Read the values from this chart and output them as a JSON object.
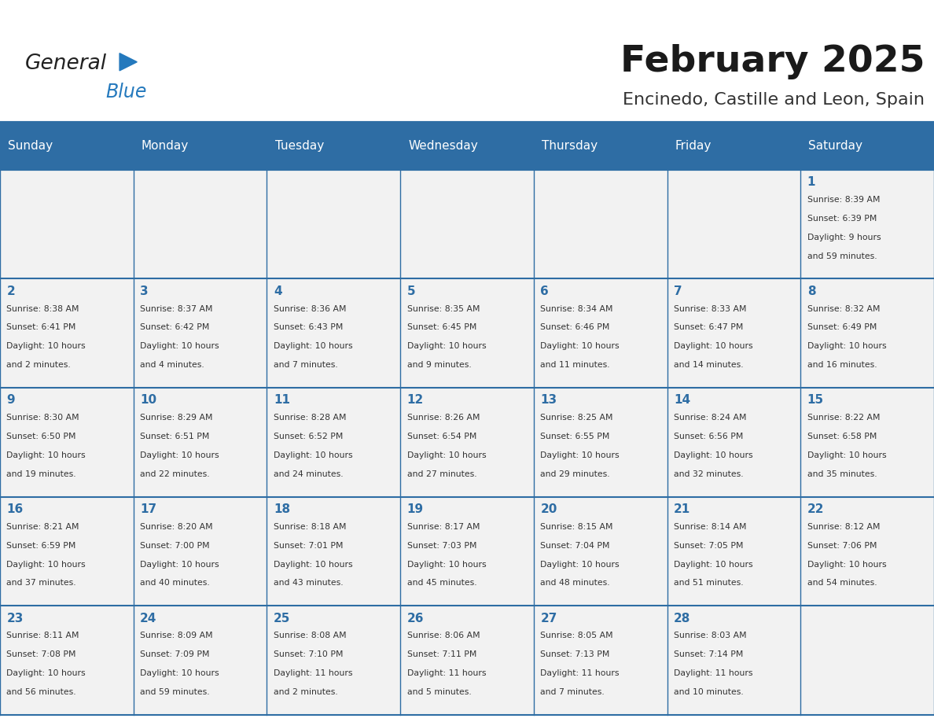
{
  "title": "February 2025",
  "subtitle": "Encinedo, Castille and Leon, Spain",
  "days_of_week": [
    "Sunday",
    "Monday",
    "Tuesday",
    "Wednesday",
    "Thursday",
    "Friday",
    "Saturday"
  ],
  "header_bg": "#2E6DA4",
  "header_text": "#FFFFFF",
  "cell_bg_light": "#F2F2F2",
  "border_color": "#2E6DA4",
  "text_color": "#333333",
  "day_num_color": "#2E6DA4",
  "logo_general_color": "#222222",
  "logo_blue_color": "#2479BD",
  "calendar_data": [
    [
      null,
      null,
      null,
      null,
      null,
      null,
      {
        "day": 1,
        "sunrise": "8:39 AM",
        "sunset": "6:39 PM",
        "daylight": "9 hours and 59 minutes."
      }
    ],
    [
      {
        "day": 2,
        "sunrise": "8:38 AM",
        "sunset": "6:41 PM",
        "daylight": "10 hours and 2 minutes."
      },
      {
        "day": 3,
        "sunrise": "8:37 AM",
        "sunset": "6:42 PM",
        "daylight": "10 hours and 4 minutes."
      },
      {
        "day": 4,
        "sunrise": "8:36 AM",
        "sunset": "6:43 PM",
        "daylight": "10 hours and 7 minutes."
      },
      {
        "day": 5,
        "sunrise": "8:35 AM",
        "sunset": "6:45 PM",
        "daylight": "10 hours and 9 minutes."
      },
      {
        "day": 6,
        "sunrise": "8:34 AM",
        "sunset": "6:46 PM",
        "daylight": "10 hours and 11 minutes."
      },
      {
        "day": 7,
        "sunrise": "8:33 AM",
        "sunset": "6:47 PM",
        "daylight": "10 hours and 14 minutes."
      },
      {
        "day": 8,
        "sunrise": "8:32 AM",
        "sunset": "6:49 PM",
        "daylight": "10 hours and 16 minutes."
      }
    ],
    [
      {
        "day": 9,
        "sunrise": "8:30 AM",
        "sunset": "6:50 PM",
        "daylight": "10 hours and 19 minutes."
      },
      {
        "day": 10,
        "sunrise": "8:29 AM",
        "sunset": "6:51 PM",
        "daylight": "10 hours and 22 minutes."
      },
      {
        "day": 11,
        "sunrise": "8:28 AM",
        "sunset": "6:52 PM",
        "daylight": "10 hours and 24 minutes."
      },
      {
        "day": 12,
        "sunrise": "8:26 AM",
        "sunset": "6:54 PM",
        "daylight": "10 hours and 27 minutes."
      },
      {
        "day": 13,
        "sunrise": "8:25 AM",
        "sunset": "6:55 PM",
        "daylight": "10 hours and 29 minutes."
      },
      {
        "day": 14,
        "sunrise": "8:24 AM",
        "sunset": "6:56 PM",
        "daylight": "10 hours and 32 minutes."
      },
      {
        "day": 15,
        "sunrise": "8:22 AM",
        "sunset": "6:58 PM",
        "daylight": "10 hours and 35 minutes."
      }
    ],
    [
      {
        "day": 16,
        "sunrise": "8:21 AM",
        "sunset": "6:59 PM",
        "daylight": "10 hours and 37 minutes."
      },
      {
        "day": 17,
        "sunrise": "8:20 AM",
        "sunset": "7:00 PM",
        "daylight": "10 hours and 40 minutes."
      },
      {
        "day": 18,
        "sunrise": "8:18 AM",
        "sunset": "7:01 PM",
        "daylight": "10 hours and 43 minutes."
      },
      {
        "day": 19,
        "sunrise": "8:17 AM",
        "sunset": "7:03 PM",
        "daylight": "10 hours and 45 minutes."
      },
      {
        "day": 20,
        "sunrise": "8:15 AM",
        "sunset": "7:04 PM",
        "daylight": "10 hours and 48 minutes."
      },
      {
        "day": 21,
        "sunrise": "8:14 AM",
        "sunset": "7:05 PM",
        "daylight": "10 hours and 51 minutes."
      },
      {
        "day": 22,
        "sunrise": "8:12 AM",
        "sunset": "7:06 PM",
        "daylight": "10 hours and 54 minutes."
      }
    ],
    [
      {
        "day": 23,
        "sunrise": "8:11 AM",
        "sunset": "7:08 PM",
        "daylight": "10 hours and 56 minutes."
      },
      {
        "day": 24,
        "sunrise": "8:09 AM",
        "sunset": "7:09 PM",
        "daylight": "10 hours and 59 minutes."
      },
      {
        "day": 25,
        "sunrise": "8:08 AM",
        "sunset": "7:10 PM",
        "daylight": "11 hours and 2 minutes."
      },
      {
        "day": 26,
        "sunrise": "8:06 AM",
        "sunset": "7:11 PM",
        "daylight": "11 hours and 5 minutes."
      },
      {
        "day": 27,
        "sunrise": "8:05 AM",
        "sunset": "7:13 PM",
        "daylight": "11 hours and 7 minutes."
      },
      {
        "day": 28,
        "sunrise": "8:03 AM",
        "sunset": "7:14 PM",
        "daylight": "11 hours and 10 minutes."
      },
      null
    ]
  ]
}
